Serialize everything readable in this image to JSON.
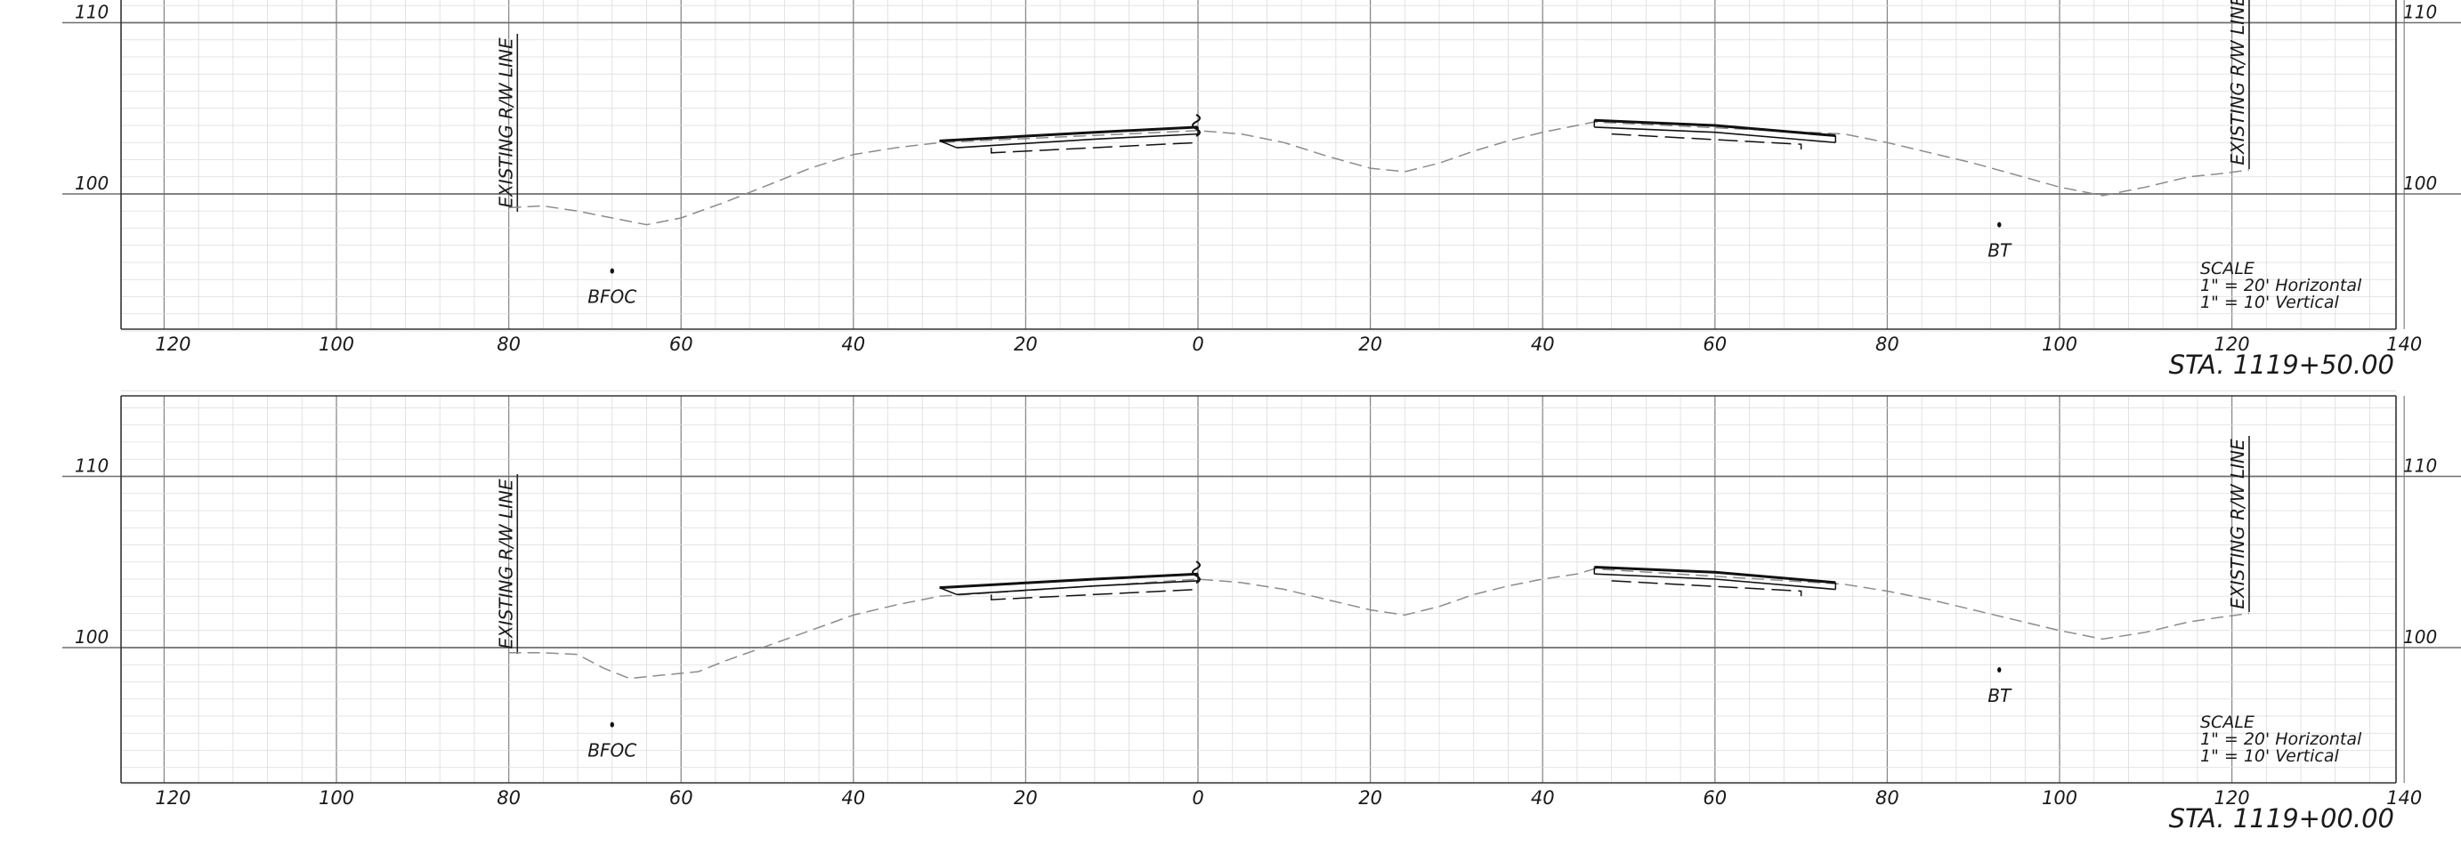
{
  "sheet": {
    "panels": [
      {
        "station": "STA. 1119+50.00",
        "elev_labels": [
          {
            "value": 110,
            "text": "110"
          },
          {
            "value": 100,
            "text": "100"
          }
        ],
        "offset_labels": [
          {
            "offset": -120,
            "text": "120"
          },
          {
            "offset": -100,
            "text": "100"
          },
          {
            "offset": -80,
            "text": "80"
          },
          {
            "offset": -60,
            "text": "60"
          },
          {
            "offset": -40,
            "text": "40"
          },
          {
            "offset": -20,
            "text": "20"
          },
          {
            "offset": 0,
            "text": "0"
          },
          {
            "offset": 20,
            "text": "20"
          },
          {
            "offset": 40,
            "text": "40"
          },
          {
            "offset": 60,
            "text": "60"
          },
          {
            "offset": 80,
            "text": "80"
          },
          {
            "offset": 100,
            "text": "100"
          },
          {
            "offset": 120,
            "text": "120"
          },
          {
            "offset": 140,
            "text": "140"
          }
        ],
        "row_labels": [
          "EXISTING R/W LINE",
          "EXISTING R/W LINE"
        ],
        "point_labels": [
          "BFOC",
          "BT"
        ],
        "scale_lines": [
          "SCALE",
          "1\" = 20' Horizontal",
          "1\" = 10' Vertical"
        ],
        "points": [
          {
            "offset": -68,
            "elev": 95.5
          },
          {
            "offset": 93,
            "elev": 98.2
          }
        ],
        "ground_profile": [
          [
            -80,
            99.2
          ],
          [
            -76,
            99.3
          ],
          [
            -72,
            99.0
          ],
          [
            -68,
            98.6
          ],
          [
            -64,
            98.2
          ],
          [
            -60,
            98.6
          ],
          [
            -55,
            99.5
          ],
          [
            -50,
            100.5
          ],
          [
            -45,
            101.5
          ],
          [
            -40,
            102.3
          ],
          [
            -35,
            102.7
          ],
          [
            -30,
            103.0
          ],
          [
            0,
            103.7
          ],
          [
            5,
            103.5
          ],
          [
            10,
            103.0
          ],
          [
            15,
            102.2
          ],
          [
            20,
            101.5
          ],
          [
            24,
            101.3
          ],
          [
            28,
            101.8
          ],
          [
            32,
            102.5
          ],
          [
            36,
            103.1
          ],
          [
            40,
            103.6
          ],
          [
            44,
            104.0
          ],
          [
            46,
            104.2
          ],
          [
            75,
            103.5
          ],
          [
            80,
            103.0
          ],
          [
            85,
            102.4
          ],
          [
            90,
            101.8
          ],
          [
            95,
            101.1
          ],
          [
            100,
            100.4
          ],
          [
            105,
            99.9
          ],
          [
            110,
            100.4
          ],
          [
            115,
            101.0
          ],
          [
            119,
            101.2
          ],
          [
            122,
            101.4
          ]
        ],
        "left_roadway": {
          "top": [
            [
              -30,
              103.1
            ],
            [
              -12,
              103.6
            ],
            [
              0,
              103.9
            ]
          ],
          "sub": [
            [
              -28,
              102.7
            ],
            [
              -12,
              103.2
            ],
            [
              0,
              103.5
            ]
          ],
          "base": [
            [
              -24,
              102.7
            ],
            [
              -24,
              102.4
            ],
            [
              0,
              103.0
            ]
          ]
        },
        "right_roadway": {
          "top": [
            [
              46,
              104.3
            ],
            [
              60,
              104.0
            ],
            [
              74,
              103.4
            ]
          ],
          "sub": [
            [
              46,
              103.9
            ],
            [
              60,
              103.6
            ],
            [
              74,
              103.0
            ]
          ],
          "base": [
            [
              48,
              103.5
            ],
            [
              70,
              102.9
            ],
            [
              70,
              102.6
            ]
          ]
        }
      },
      {
        "station": "STA. 1119+00.00",
        "elev_labels": [
          {
            "value": 110,
            "text": "110"
          },
          {
            "value": 100,
            "text": "100"
          }
        ],
        "offset_labels": [
          {
            "offset": -120,
            "text": "120"
          },
          {
            "offset": -100,
            "text": "100"
          },
          {
            "offset": -80,
            "text": "80"
          },
          {
            "offset": -60,
            "text": "60"
          },
          {
            "offset": -40,
            "text": "40"
          },
          {
            "offset": -20,
            "text": "20"
          },
          {
            "offset": 0,
            "text": "0"
          },
          {
            "offset": 20,
            "text": "20"
          },
          {
            "offset": 40,
            "text": "40"
          },
          {
            "offset": 60,
            "text": "60"
          },
          {
            "offset": 80,
            "text": "80"
          },
          {
            "offset": 100,
            "text": "100"
          },
          {
            "offset": 120,
            "text": "120"
          },
          {
            "offset": 140,
            "text": "140"
          }
        ],
        "row_labels": [
          "EXISTING R/W LINE",
          "EXISTING R/W LINE"
        ],
        "point_labels": [
          "BFOC",
          "BT"
        ],
        "scale_lines": [
          "SCALE",
          "1\" = 20' Horizontal",
          "1\" = 10' Vertical"
        ],
        "points": [
          {
            "offset": -68,
            "elev": 95.5
          },
          {
            "offset": 93,
            "elev": 98.7
          }
        ],
        "ground_profile": [
          [
            -80,
            99.7
          ],
          [
            -76,
            99.7
          ],
          [
            -72,
            99.6
          ],
          [
            -69,
            98.8
          ],
          [
            -66,
            98.2
          ],
          [
            -62,
            98.4
          ],
          [
            -58,
            98.6
          ],
          [
            -55,
            99.2
          ],
          [
            -50,
            100.1
          ],
          [
            -45,
            101.0
          ],
          [
            -40,
            101.9
          ],
          [
            -35,
            102.5
          ],
          [
            -30,
            103.0
          ],
          [
            0,
            104.0
          ],
          [
            5,
            103.8
          ],
          [
            10,
            103.4
          ],
          [
            15,
            102.8
          ],
          [
            20,
            102.2
          ],
          [
            24,
            101.9
          ],
          [
            28,
            102.4
          ],
          [
            32,
            103.1
          ],
          [
            36,
            103.6
          ],
          [
            40,
            104.0
          ],
          [
            44,
            104.3
          ],
          [
            46,
            104.6
          ],
          [
            75,
            103.7
          ],
          [
            80,
            103.3
          ],
          [
            85,
            102.8
          ],
          [
            90,
            102.2
          ],
          [
            95,
            101.6
          ],
          [
            100,
            101.0
          ],
          [
            105,
            100.5
          ],
          [
            110,
            100.9
          ],
          [
            115,
            101.5
          ],
          [
            119,
            101.8
          ],
          [
            122,
            102.0
          ]
        ],
        "left_roadway": {
          "top": [
            [
              -30,
              103.5
            ],
            [
              -12,
              104.0
            ],
            [
              0,
              104.3
            ]
          ],
          "sub": [
            [
              -28,
              103.1
            ],
            [
              -12,
              103.6
            ],
            [
              0,
              103.9
            ]
          ],
          "base": [
            [
              -24,
              103.1
            ],
            [
              -24,
              102.8
            ],
            [
              0,
              103.4
            ]
          ]
        },
        "right_roadway": {
          "top": [
            [
              46,
              104.7
            ],
            [
              60,
              104.4
            ],
            [
              74,
              103.8
            ]
          ],
          "sub": [
            [
              46,
              104.3
            ],
            [
              60,
              104.0
            ],
            [
              74,
              103.4
            ]
          ],
          "base": [
            [
              48,
              103.9
            ],
            [
              70,
              103.3
            ],
            [
              70,
              103.0
            ]
          ]
        }
      }
    ]
  }
}
